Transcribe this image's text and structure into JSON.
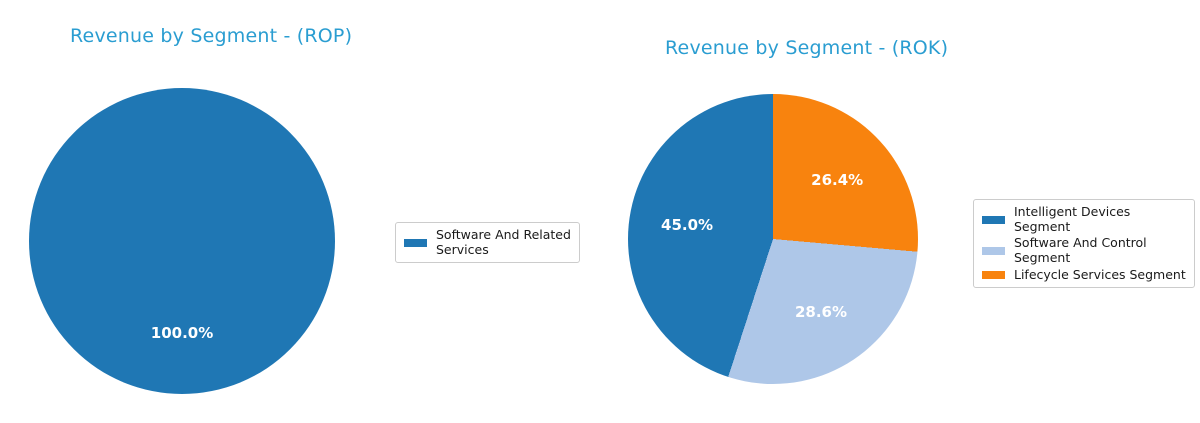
{
  "figure": {
    "background": "#ffffff",
    "accent_title_color": "#2a9dd1"
  },
  "chart_data": [
    {
      "type": "pie",
      "title": "Revenue by Segment - (ROP)",
      "title_color": "#2a9dd1",
      "labels": [
        "Software And Related Services"
      ],
      "values": [
        100.0
      ],
      "pct_labels": [
        "100.0%"
      ],
      "colors": [
        "#1f77b4"
      ],
      "pct_label_color": "#ffffff",
      "legend_labels_display": [
        "Software And Related\nServices"
      ],
      "legend_position": "right-of-pie",
      "start_angle": 90,
      "direction": "counterclockwise"
    },
    {
      "type": "pie",
      "title": "Revenue by Segment - (ROK)",
      "title_color": "#2a9dd1",
      "labels": [
        "Intelligent Devices Segment",
        "Software And Control Segment",
        "Lifecycle Services Segment"
      ],
      "values": [
        45.0,
        28.6,
        26.4
      ],
      "pct_labels": [
        "45.0%",
        "28.6%",
        "26.4%"
      ],
      "colors": [
        "#1f77b4",
        "#aec7e8",
        "#f8830e"
      ],
      "pct_label_color": "#ffffff",
      "legend_labels_display": [
        "Intelligent Devices\nSegment",
        "Software And Control\nSegment",
        "Lifecycle Services Segment"
      ],
      "legend_position": "right-of-pie",
      "start_angle": 90,
      "direction": "counterclockwise"
    }
  ]
}
